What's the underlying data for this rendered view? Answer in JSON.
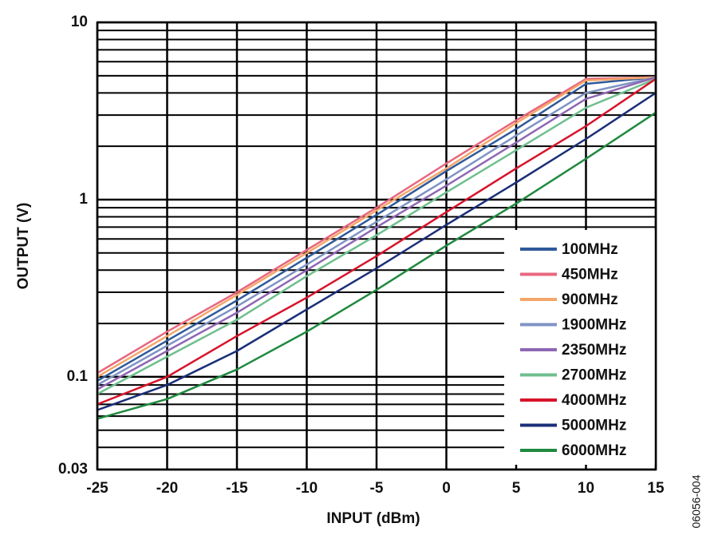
{
  "chart_data": {
    "type": "line",
    "x_label": "INPUT (dBm)",
    "y_label": "OUTPUT (V)",
    "note": "06056-004",
    "x": [
      -25,
      -20,
      -15,
      -10,
      -5,
      0,
      5,
      10,
      15
    ],
    "xlim": [
      -25,
      15
    ],
    "xticks": [
      -25,
      -20,
      -15,
      -10,
      -5,
      0,
      5,
      10,
      15
    ],
    "ylim": [
      0.03,
      10
    ],
    "yticks": [
      0.03,
      0.1,
      1,
      10
    ],
    "y_log": true,
    "y_minor_ticks": [
      0.04,
      0.05,
      0.06,
      0.07,
      0.08,
      0.09,
      0.2,
      0.3,
      0.4,
      0.5,
      0.6,
      0.7,
      0.8,
      0.9,
      2,
      3,
      4,
      5,
      6,
      7,
      8,
      9
    ],
    "grid": true,
    "legend": "lower right",
    "series": [
      {
        "name": "100MHz",
        "color": "#2f5a9a",
        "values": [
          0.095,
          0.16,
          0.27,
          0.47,
          0.82,
          1.45,
          2.5,
          4.5,
          4.9
        ]
      },
      {
        "name": "450MHz",
        "color": "#e8677f",
        "values": [
          0.105,
          0.18,
          0.3,
          0.52,
          0.9,
          1.6,
          2.8,
          4.8,
          4.9
        ]
      },
      {
        "name": "900MHz",
        "color": "#f4a66a",
        "values": [
          0.1,
          0.17,
          0.29,
          0.5,
          0.87,
          1.5,
          2.7,
          4.7,
          4.9
        ]
      },
      {
        "name": "1900MHz",
        "color": "#7f93c4",
        "values": [
          0.09,
          0.15,
          0.25,
          0.43,
          0.75,
          1.3,
          2.3,
          4.0,
          4.9
        ]
      },
      {
        "name": "2350MHz",
        "color": "#8e67b3",
        "values": [
          0.085,
          0.14,
          0.23,
          0.4,
          0.7,
          1.2,
          2.1,
          3.7,
          4.9
        ]
      },
      {
        "name": "2700MHz",
        "color": "#6fbf8e",
        "values": [
          0.08,
          0.13,
          0.21,
          0.37,
          0.63,
          1.1,
          1.9,
          3.3,
          4.8
        ]
      },
      {
        "name": "4000MHz",
        "color": "#d7142b",
        "values": [
          0.07,
          0.1,
          0.17,
          0.28,
          0.48,
          0.85,
          1.5,
          2.6,
          4.8
        ]
      },
      {
        "name": "5000MHz",
        "color": "#1a2f78",
        "values": [
          0.065,
          0.09,
          0.14,
          0.24,
          0.41,
          0.72,
          1.25,
          2.2,
          4.0
        ]
      },
      {
        "name": "6000MHz",
        "color": "#1f8a3f",
        "values": [
          0.058,
          0.075,
          0.11,
          0.18,
          0.31,
          0.55,
          0.95,
          1.7,
          3.1
        ]
      }
    ]
  }
}
